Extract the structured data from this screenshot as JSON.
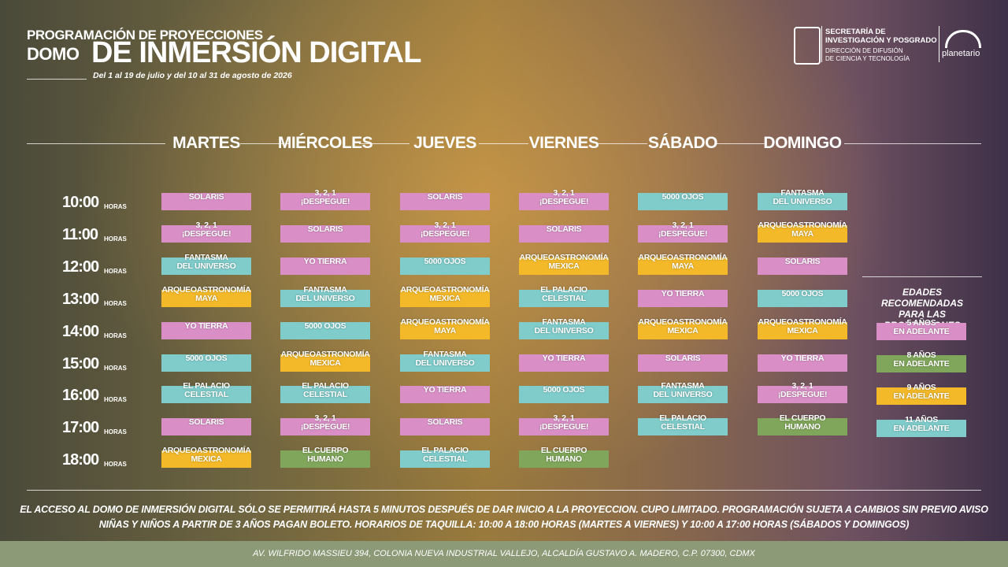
{
  "header": {
    "title_line1": "PROGRAMACIÓN DE PROYECCIONES",
    "title_line2a": "DOMO",
    "title_line2b": "DE INMERSIÓN DIGITAL",
    "dates": "Del 1 al 19 de julio y del 10 al 31 de agosto de 2026"
  },
  "logos": {
    "org_line1": "SECRETARÍA DE",
    "org_line2": "INVESTIGACIÓN Y POSGRADO",
    "dept_line1": "DIRECCIÓN DE DIFUSIÓN",
    "dept_line2": "DE CIENCIA Y TECNOLOGÍA",
    "planetario": "planetario"
  },
  "days": [
    "MARTES",
    "MIÉRCOLES",
    "JUEVES",
    "VIERNES",
    "SÁBADO",
    "DOMINGO"
  ],
  "times": [
    "10:00",
    "11:00",
    "12:00",
    "13:00",
    "14:00",
    "15:00",
    "16:00",
    "17:00",
    "18:00"
  ],
  "horas_label": "HORAS",
  "schedule": [
    [
      {
        "lines": [
          "SOLARIS"
        ],
        "color": "#d98fc6"
      },
      {
        "lines": [
          "3, 2, 1",
          "¡DESPEGUE!"
        ],
        "color": "#d98fc6"
      },
      {
        "lines": [
          "FANTASMA",
          "DEL UNIVERSO"
        ],
        "color": "#7fcccb"
      },
      {
        "lines": [
          "ARQUEOASTRONOMÍA",
          "MAYA"
        ],
        "color": "#f4b929"
      },
      {
        "lines": [
          "YO TIERRA"
        ],
        "color": "#d98fc6"
      },
      {
        "lines": [
          "5000 OJOS"
        ],
        "color": "#7fcccb"
      },
      {
        "lines": [
          "EL PALACIO",
          "CELESTIAL"
        ],
        "color": "#7fcccb"
      },
      {
        "lines": [
          "SOLARIS"
        ],
        "color": "#d98fc6"
      },
      {
        "lines": [
          "ARQUEOASTRONOMÍA",
          "MEXICA"
        ],
        "color": "#f4b929"
      }
    ],
    [
      {
        "lines": [
          "3, 2, 1",
          "¡DESPEGUE!"
        ],
        "color": "#d98fc6"
      },
      {
        "lines": [
          "SOLARIS"
        ],
        "color": "#d98fc6"
      },
      {
        "lines": [
          "YO TIERRA"
        ],
        "color": "#d98fc6"
      },
      {
        "lines": [
          "FANTASMA",
          "DEL UNIVERSO"
        ],
        "color": "#7fcccb"
      },
      {
        "lines": [
          "5000 OJOS"
        ],
        "color": "#7fcccb"
      },
      {
        "lines": [
          "ARQUEOASTRONOMÍA",
          "MEXICA"
        ],
        "color": "#f4b929"
      },
      {
        "lines": [
          "EL PALACIO",
          "CELESTIAL"
        ],
        "color": "#7fcccb"
      },
      {
        "lines": [
          "3, 2, 1",
          "¡DESPEGUE!"
        ],
        "color": "#d98fc6"
      },
      {
        "lines": [
          "EL CUERPO",
          "HUMANO"
        ],
        "color": "#7fa65a"
      }
    ],
    [
      {
        "lines": [
          "SOLARIS"
        ],
        "color": "#d98fc6"
      },
      {
        "lines": [
          "3, 2, 1",
          "¡DESPEGUE!"
        ],
        "color": "#d98fc6"
      },
      {
        "lines": [
          "5000 OJOS"
        ],
        "color": "#7fcccb"
      },
      {
        "lines": [
          "ARQUEOASTRONOMÍA",
          "MEXICA"
        ],
        "color": "#f4b929"
      },
      {
        "lines": [
          "ARQUEOASTRONOMÍA",
          "MAYA"
        ],
        "color": "#f4b929"
      },
      {
        "lines": [
          "FANTASMA",
          "DEL UNIVERSO"
        ],
        "color": "#7fcccb"
      },
      {
        "lines": [
          "YO TIERRA"
        ],
        "color": "#d98fc6"
      },
      {
        "lines": [
          "SOLARIS"
        ],
        "color": "#d98fc6"
      },
      {
        "lines": [
          "EL PALACIO",
          "CELESTIAL"
        ],
        "color": "#7fcccb"
      }
    ],
    [
      {
        "lines": [
          "3, 2, 1",
          "¡DESPEGUE!"
        ],
        "color": "#d98fc6"
      },
      {
        "lines": [
          "SOLARIS"
        ],
        "color": "#d98fc6"
      },
      {
        "lines": [
          "ARQUEOASTRONOMÍA",
          "MEXICA"
        ],
        "color": "#f4b929"
      },
      {
        "lines": [
          "EL PALACIO",
          "CELESTIAL"
        ],
        "color": "#7fcccb"
      },
      {
        "lines": [
          "FANTASMA",
          "DEL UNIVERSO"
        ],
        "color": "#7fcccb"
      },
      {
        "lines": [
          "YO TIERRA"
        ],
        "color": "#d98fc6"
      },
      {
        "lines": [
          "5000 OJOS"
        ],
        "color": "#7fcccb"
      },
      {
        "lines": [
          "3, 2, 1",
          "¡DESPEGUE!"
        ],
        "color": "#d98fc6"
      },
      {
        "lines": [
          "EL CUERPO",
          "HUMANO"
        ],
        "color": "#7fa65a"
      }
    ],
    [
      {
        "lines": [
          "5000 OJOS"
        ],
        "color": "#7fcccb"
      },
      {
        "lines": [
          "3, 2, 1",
          "¡DESPEGUE!"
        ],
        "color": "#d98fc6"
      },
      {
        "lines": [
          "ARQUEOASTRONOMÍA",
          "MAYA"
        ],
        "color": "#f4b929"
      },
      {
        "lines": [
          "YO TIERRA"
        ],
        "color": "#d98fc6"
      },
      {
        "lines": [
          "ARQUEOASTRONOMÍA",
          "MEXICA"
        ],
        "color": "#f4b929"
      },
      {
        "lines": [
          "SOLARIS"
        ],
        "color": "#d98fc6"
      },
      {
        "lines": [
          "FANTASMA",
          "DEL UNIVERSO"
        ],
        "color": "#7fcccb"
      },
      {
        "lines": [
          "EL PALACIO",
          "CELESTIAL"
        ],
        "color": "#7fcccb"
      },
      null
    ],
    [
      {
        "lines": [
          "FANTASMA",
          "DEL UNIVERSO"
        ],
        "color": "#7fcccb"
      },
      {
        "lines": [
          "ARQUEOASTRONOMÍA",
          "MAYA"
        ],
        "color": "#f4b929"
      },
      {
        "lines": [
          "SOLARIS"
        ],
        "color": "#d98fc6"
      },
      {
        "lines": [
          "5000 OJOS"
        ],
        "color": "#7fcccb"
      },
      {
        "lines": [
          "ARQUEOASTRONOMÍA",
          "MEXICA"
        ],
        "color": "#f4b929"
      },
      {
        "lines": [
          "YO TIERRA"
        ],
        "color": "#d98fc6"
      },
      {
        "lines": [
          "3, 2, 1",
          "¡DESPEGUE!"
        ],
        "color": "#d98fc6"
      },
      {
        "lines": [
          "EL CUERPO",
          "HUMANO"
        ],
        "color": "#7fa65a"
      },
      null
    ]
  ],
  "legend": {
    "title_lines": [
      "EDADES RECOMENDADAS",
      "PARA LAS PROYECCIONES"
    ],
    "items": [
      {
        "lines": [
          "5 AÑOS",
          "EN ADELANTE"
        ],
        "color": "#d98fc6"
      },
      {
        "lines": [
          "8 AÑOS",
          "EN ADELANTE"
        ],
        "color": "#7fa65a"
      },
      {
        "lines": [
          "9 AÑOS",
          "EN ADELANTE"
        ],
        "color": "#f4b929"
      },
      {
        "lines": [
          "11 AÑOS",
          "EN ADELANTE"
        ],
        "color": "#7fcccb"
      }
    ]
  },
  "notes": [
    "EL ACCESO AL DOMO DE INMERSIÓN DIGITAL SÓLO SE PERMITIRÁ HASTA 5 MINUTOS DESPUÉS DE DAR INICIO A LA PROYECCION. CUPO LIMITADO. PROGRAMACIÓN SUJETA A CAMBIOS SIN PREVIO AVISO",
    "NIÑAS Y NIÑOS A PARTIR DE 3 AÑOS PAGAN BOLETO. HORARIOS DE TAQUILLA: 10:00 A 18:00 HORAS (MARTES A VIERNES) Y 10:00 A 17:00 HORAS (SÁBADOS Y DOMINGOS)"
  ],
  "address": "AV. WILFRIDO MASSIEU 394, COLONIA NUEVA INDUSTRIAL VALLEJO, ALCALDÍA GUSTAVO A. MADERO, C.P. 07300, CDMX"
}
